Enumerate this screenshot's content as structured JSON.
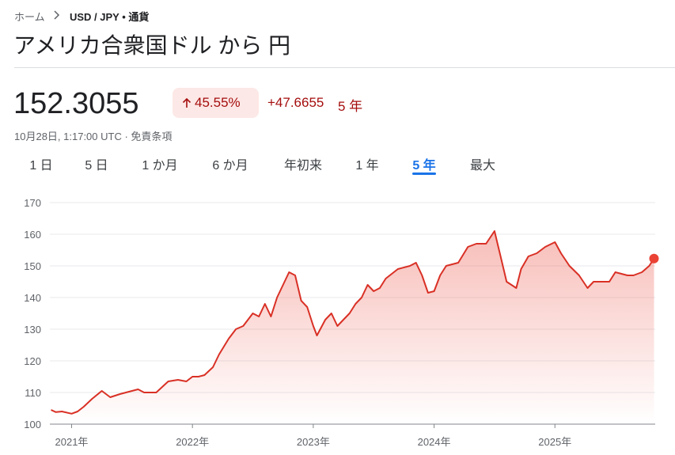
{
  "breadcrumb": {
    "home": "ホーム",
    "current": "USD / JPY • 通貨"
  },
  "title": "アメリカ合衆国ドル から 円",
  "price": "152.3055",
  "change_percent": "45.55%",
  "change_value": "+47.6655",
  "change_period": "5 年",
  "timestamp": "10月28日, 1:17:00 UTC · 免責条項",
  "tabs": [
    "1 日",
    "5 日",
    "1 か月",
    "6 か月",
    "年初来",
    "1 年",
    "5 年",
    "最大"
  ],
  "selected_tab_index": 6,
  "chart_data": {
    "type": "line",
    "color": "#d93025",
    "grid": true,
    "x": [
      2020.83,
      2020.87,
      2020.92,
      2021.0,
      2021.05,
      2021.1,
      2021.17,
      2021.25,
      2021.32,
      2021.4,
      2021.5,
      2021.55,
      2021.6,
      2021.7,
      2021.8,
      2021.88,
      2021.95,
      2022.0,
      2022.05,
      2022.1,
      2022.17,
      2022.22,
      2022.3,
      2022.36,
      2022.42,
      2022.5,
      2022.55,
      2022.6,
      2022.65,
      2022.7,
      2022.75,
      2022.8,
      2022.85,
      2022.9,
      2022.95,
      2023.0,
      2023.03,
      2023.1,
      2023.15,
      2023.2,
      2023.25,
      2023.3,
      2023.35,
      2023.4,
      2023.45,
      2023.5,
      2023.55,
      2023.6,
      2023.7,
      2023.8,
      2023.85,
      2023.9,
      2023.95,
      2024.0,
      2024.05,
      2024.1,
      2024.2,
      2024.28,
      2024.35,
      2024.43,
      2024.5,
      2024.55,
      2024.6,
      2024.68,
      2024.72,
      2024.78,
      2024.85,
      2024.92,
      2025.0,
      2025.05,
      2025.12,
      2025.2,
      2025.27,
      2025.32,
      2025.4,
      2025.45,
      2025.5,
      2025.6,
      2025.65,
      2025.72,
      2025.78,
      2025.82
    ],
    "values": [
      104.5,
      103.8,
      104,
      103.3,
      104,
      105.5,
      108,
      110.5,
      108.5,
      109.5,
      110.5,
      111,
      110,
      110,
      113.5,
      114,
      113.5,
      115,
      115,
      115.5,
      118,
      122,
      127,
      130,
      131,
      135,
      134,
      138,
      134,
      140,
      144,
      148,
      147,
      139,
      137,
      131,
      128,
      133,
      135,
      131,
      133,
      135,
      138,
      140,
      144,
      142,
      143,
      146,
      149,
      150,
      151,
      147,
      141.5,
      142,
      147,
      150,
      151,
      156,
      157,
      157,
      161,
      153,
      145,
      143,
      149,
      153,
      154,
      156,
      157.5,
      154,
      150,
      147,
      143,
      145,
      145,
      145,
      148,
      147,
      147,
      148,
      150,
      152.3055
    ],
    "xlim": [
      2020.82,
      2025.83
    ],
    "xticks": [
      {
        "value": 2021,
        "label": "2021年"
      },
      {
        "value": 2022,
        "label": "2022年"
      },
      {
        "value": 2023,
        "label": "2023年"
      },
      {
        "value": 2024,
        "label": "2024年"
      },
      {
        "value": 2025,
        "label": "2025年"
      }
    ],
    "ylim": [
      100,
      170
    ],
    "yticks": [
      100,
      110,
      120,
      130,
      140,
      150,
      160,
      170
    ]
  }
}
